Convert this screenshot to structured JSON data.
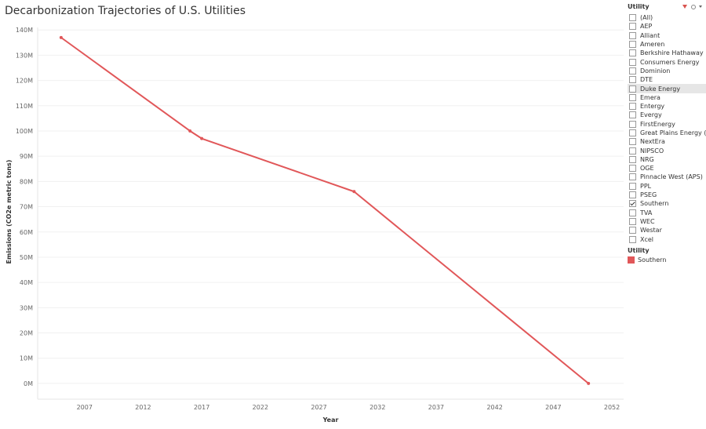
{
  "title": "Decarbonization Trajectories of  U.S. Utilities",
  "filter": {
    "title": "Utility",
    "items": [
      {
        "label": "(All)",
        "checked": false
      },
      {
        "label": "AEP",
        "checked": false
      },
      {
        "label": "Alliant",
        "checked": false
      },
      {
        "label": "Ameren",
        "checked": false
      },
      {
        "label": "Berkshire Hathaway ...",
        "checked": false
      },
      {
        "label": "Consumers Energy",
        "checked": false
      },
      {
        "label": "Dominion",
        "checked": false
      },
      {
        "label": "DTE",
        "checked": false
      },
      {
        "label": "Duke Energy",
        "checked": false,
        "hover": true
      },
      {
        "label": "Emera",
        "checked": false
      },
      {
        "label": "Entergy",
        "checked": false
      },
      {
        "label": "Evergy",
        "checked": false
      },
      {
        "label": "FirstEnergy",
        "checked": false
      },
      {
        "label": "Great Plains Energy (...",
        "checked": false
      },
      {
        "label": "NextEra",
        "checked": false
      },
      {
        "label": "NIPSCO",
        "checked": false
      },
      {
        "label": "NRG",
        "checked": false
      },
      {
        "label": "OGE",
        "checked": false
      },
      {
        "label": "Pinnacle West (APS)",
        "checked": false
      },
      {
        "label": "PPL",
        "checked": false
      },
      {
        "label": "PSEG",
        "checked": false
      },
      {
        "label": "Southern",
        "checked": true
      },
      {
        "label": "TVA",
        "checked": false
      },
      {
        "label": "WEC",
        "checked": false
      },
      {
        "label": "Westar",
        "checked": false
      },
      {
        "label": "Xcel",
        "checked": false
      }
    ]
  },
  "legend": {
    "title": "Utility",
    "items": [
      {
        "label": "Southern",
        "color": "#e15759"
      }
    ]
  },
  "chart_data": {
    "type": "line",
    "xlabel": "Year",
    "ylabel": "Emissions (CO2e metric tons)",
    "xlim": [
      2003,
      2053
    ],
    "ylim": [
      -5000000,
      141000000
    ],
    "x_ticks": [
      2007,
      2012,
      2017,
      2022,
      2027,
      2032,
      2037,
      2042,
      2047,
      2052
    ],
    "x_tick_labels": [
      "2007",
      "2012",
      "2017",
      "2022",
      "2027",
      "2032",
      "2037",
      "2042",
      "2047",
      "2052"
    ],
    "y_ticks": [
      0,
      10000000,
      20000000,
      30000000,
      40000000,
      50000000,
      60000000,
      70000000,
      80000000,
      90000000,
      100000000,
      110000000,
      120000000,
      130000000,
      140000000
    ],
    "y_tick_labels": [
      "0M",
      "10M",
      "20M",
      "30M",
      "40M",
      "50M",
      "60M",
      "70M",
      "80M",
      "90M",
      "100M",
      "110M",
      "120M",
      "130M",
      "140M"
    ],
    "grid": true,
    "series": [
      {
        "name": "Southern",
        "color": "#e15759",
        "x": [
          2005,
          2016,
          2017,
          2030,
          2050
        ],
        "y": [
          137000000,
          100000000,
          97000000,
          76000000,
          0
        ]
      }
    ]
  }
}
